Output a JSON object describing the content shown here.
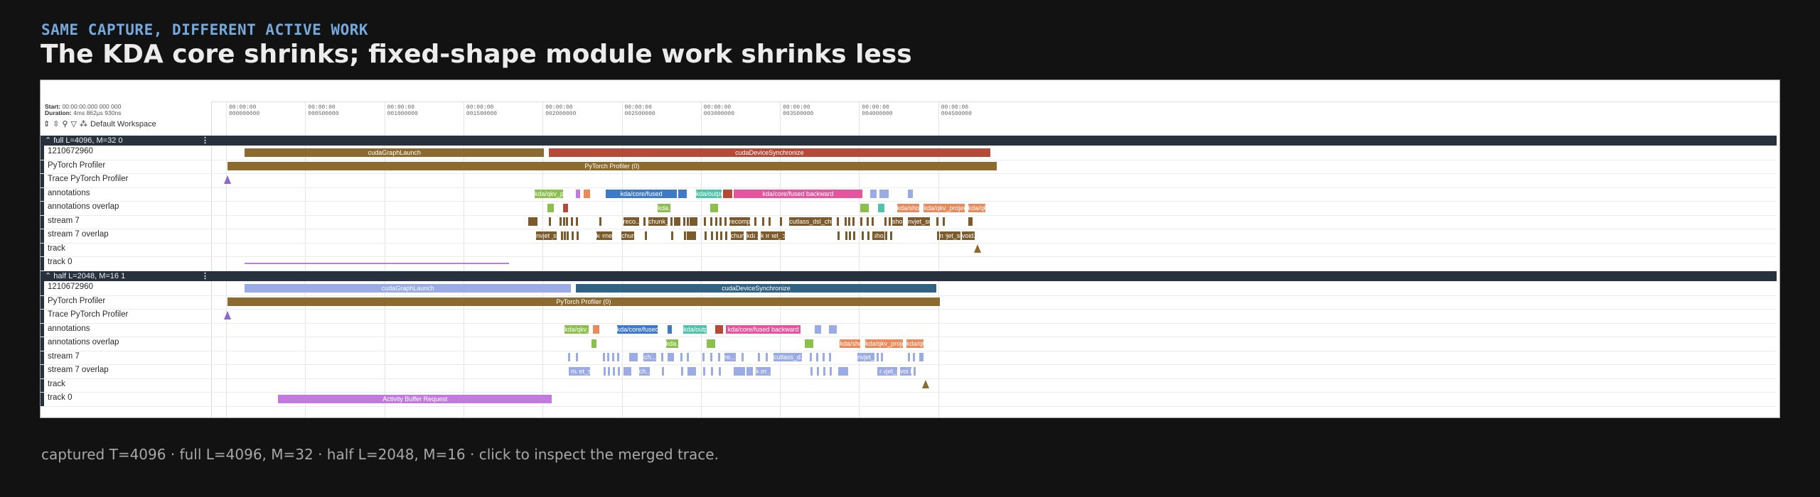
{
  "kicker": "SAME CAPTURE, DIFFERENT ACTIVE WORK",
  "title": "The KDA core shrinks; fixed-shape module work shrinks less",
  "caption": "captured T=4096 · full L=4096, M=32 · half L=2048, M=16 · click to inspect the merged trace.",
  "trace": {
    "start_label": "Start:",
    "start_value": "00:00:00.000 000 000",
    "duration_label": "Duration:",
    "duration_value": "4ms 862µs 930ns",
    "workspace": "Default Workspace",
    "ticks": [
      "00:00:00\n000000000",
      "00:00:00\n000500000",
      "00:00:00\n001000000",
      "00:00:00\n001500000",
      "00:00:00\n002000000",
      "00:00:00\n002500000",
      "00:00:00\n003000000",
      "00:00:00\n003500000",
      "00:00:00\n004000000",
      "00:00:00\n004500000"
    ],
    "groups": [
      {
        "label": "full L=4096, M=32 0",
        "rows": [
          "1210672960",
          "PyTorch Profiler",
          "Trace PyTorch Profiler",
          "annotations",
          "annotations overlap",
          "stream 7",
          "stream 7 overlap",
          "track",
          "track 0"
        ]
      },
      {
        "label": "half L=2048, M=16 1",
        "rows": [
          "1210672960",
          "PyTorch Profiler",
          "Trace PyTorch Profiler",
          "annotations",
          "annotations overlap",
          "stream 7",
          "stream 7 overlap",
          "track",
          "track 0"
        ]
      }
    ]
  },
  "colors": {
    "launch": "#8d6b2f",
    "sync_full": "#b64a36",
    "sync_half": "#2f6283",
    "launch_half": "#9aabe6",
    "profiler": "#8d6b2f",
    "kda_fused": "#3f79c9",
    "core_backward": "#e6549f",
    "qkv": "#8cc04e",
    "output": "#4fc4a8",
    "stream": "#7b5a2b",
    "stream_half": "#9aabe6",
    "activity": "#c07ae0",
    "short": "#e88a5a"
  },
  "group1": {
    "launch": {
      "label": "cudaGraphLaunch",
      "t0": 0.11,
      "t1": 2.0
    },
    "sync": {
      "label": "cudaDeviceSynchronize",
      "t0": 2.03,
      "t1": 4.82
    },
    "profiler": {
      "label": "PyTorch Profiler (0)",
      "t0": 0.0,
      "t1": 4.86
    },
    "annotations": [
      {
        "label": "kda/qkv_pro...",
        "t0": 1.94,
        "t1": 2.12,
        "c": "qkv"
      },
      {
        "label": "k",
        "t0": 2.2,
        "t1": 2.23,
        "c": "activity"
      },
      {
        "label": "k...",
        "t0": 2.25,
        "t1": 2.29,
        "c": "short"
      },
      {
        "label": "kda/core/fused",
        "t0": 2.39,
        "t1": 2.84,
        "c": "kda_fused"
      },
      {
        "label": "kd...",
        "t0": 2.85,
        "t1": 2.9,
        "c": "kda_fused"
      },
      {
        "label": "kda/output...",
        "t0": 2.96,
        "t1": 3.12,
        "c": "output"
      },
      {
        "label": "kd...",
        "t0": 3.13,
        "t1": 3.19,
        "c": "sync_full"
      },
      {
        "label": "kda/core/fused backward",
        "t0": 3.2,
        "t1": 4.01,
        "c": "core_backward"
      },
      {
        "label": "k...",
        "t0": 4.06,
        "t1": 4.1,
        "c": "launch_half"
      },
      {
        "label": "kd...",
        "t0": 4.12,
        "t1": 4.18,
        "c": "launch_half"
      },
      {
        "label": "k",
        "t0": 4.3,
        "t1": 4.33,
        "c": "launch_half"
      }
    ],
    "overlap": [
      {
        "label": "k...",
        "t0": 2.02,
        "t1": 2.06,
        "c": "qkv"
      },
      {
        "label": "k",
        "t0": 2.12,
        "t1": 2.15,
        "c": "sync_full"
      },
      {
        "label": "kda...",
        "t0": 2.72,
        "t1": 2.8,
        "c": "qkv"
      },
      {
        "label": "kd...",
        "t0": 3.05,
        "t1": 3.1,
        "c": "qkv"
      },
      {
        "label": "kd...",
        "t0": 4.0,
        "t1": 4.05,
        "c": "qkv"
      },
      {
        "label": "k...",
        "t0": 4.11,
        "t1": 4.15,
        "c": "output"
      },
      {
        "label": "kda/short...",
        "t0": 4.23,
        "t1": 4.37,
        "c": "short"
      },
      {
        "label": "kda/qkv_projection...",
        "t0": 4.4,
        "t1": 4.66,
        "c": "short"
      },
      {
        "label": "kda/qk...",
        "t0": 4.68,
        "t1": 4.79,
        "c": "short"
      }
    ],
    "stream": [
      {
        "label": "v",
        "t0": 1.9,
        "t1": 1.96
      },
      {
        "label": "reco...",
        "t0": 2.5,
        "t1": 2.6
      },
      {
        "label": "chunk_...",
        "t0": 2.66,
        "t1": 2.78
      },
      {
        "label": "n...",
        "t0": 2.82,
        "t1": 2.86
      },
      {
        "label": "n...",
        "t0": 2.92,
        "t1": 2.97
      },
      {
        "label": "recomp...",
        "t0": 3.17,
        "t1": 3.3
      },
      {
        "label": "cutlass_dsl_chunk_k...",
        "t0": 3.55,
        "t1": 3.82
      },
      {
        "label": "sho...",
        "t0": 4.2,
        "t1": 4.27
      },
      {
        "label": "nvjet_sm...",
        "t0": 4.3,
        "t1": 4.44
      },
      {
        "label": "v",
        "t0": 4.68,
        "t1": 4.71
      }
    ],
    "stream_overlap": [
      {
        "label": "nvjet_sm...",
        "t0": 1.95,
        "t1": 2.08
      },
      {
        "label": "kerne...",
        "t0": 2.33,
        "t1": 2.43
      },
      {
        "label": "chun...",
        "t0": 2.49,
        "t1": 2.57
      },
      {
        "label": "nv...",
        "t0": 2.9,
        "t1": 2.96
      },
      {
        "label": "chun...",
        "t0": 3.18,
        "t1": 3.26
      },
      {
        "label": "kda...",
        "t0": 3.28,
        "t1": 3.35
      },
      {
        "label": "kernel_cut...",
        "t0": 3.37,
        "t1": 3.52
      },
      {
        "label": "sho...",
        "t0": 4.08,
        "t1": 4.15
      },
      {
        "label": "nvjet_sm...",
        "t0": 4.5,
        "t1": 4.63
      },
      {
        "label": "void...",
        "t0": 4.64,
        "t1": 4.72
      }
    ],
    "track0_line": {
      "t0": 0.11,
      "t1": 1.78
    }
  },
  "group2": {
    "launch": {
      "label": "cudaGraphLaunch",
      "t0": 0.11,
      "t1": 2.17
    },
    "sync": {
      "label": "cudaDeviceSynchronize",
      "t0": 2.2,
      "t1": 4.48
    },
    "profiler": {
      "label": "PyTorch Profiler (0)",
      "t0": 0.0,
      "t1": 4.5
    },
    "annotations": [
      {
        "label": "kda/qkv_pr...",
        "t0": 2.13,
        "t1": 2.28,
        "c": "qkv"
      },
      {
        "label": "k...",
        "t0": 2.31,
        "t1": 2.35,
        "c": "short"
      },
      {
        "label": "kda/core/fused",
        "t0": 2.46,
        "t1": 2.72,
        "c": "kda_fused"
      },
      {
        "label": "k",
        "t0": 2.78,
        "t1": 2.81,
        "c": "kda_fused"
      },
      {
        "label": "kda/output...",
        "t0": 2.88,
        "t1": 3.03,
        "c": "output"
      },
      {
        "label": "k...",
        "t0": 3.08,
        "t1": 3.13,
        "c": "sync_full"
      },
      {
        "label": "kda/core/fused backward",
        "t0": 3.15,
        "t1": 3.62,
        "c": "core_backward"
      },
      {
        "label": "k...",
        "t0": 3.71,
        "t1": 3.75,
        "c": "launch_half"
      },
      {
        "label": "kd...",
        "t0": 3.8,
        "t1": 3.85,
        "c": "launch_half"
      }
    ],
    "overlap": [
      {
        "label": "k",
        "t0": 2.3,
        "t1": 2.33,
        "c": "qkv"
      },
      {
        "label": "kda...",
        "t0": 2.77,
        "t1": 2.85,
        "c": "qkv"
      },
      {
        "label": "kd...",
        "t0": 3.03,
        "t1": 3.08,
        "c": "qkv"
      },
      {
        "label": "k...",
        "t0": 3.65,
        "t1": 3.7,
        "c": "qkv"
      },
      {
        "label": "kda/shor...",
        "t0": 3.87,
        "t1": 4.0,
        "c": "short"
      },
      {
        "label": "kda/qkv_projectio...",
        "t0": 4.03,
        "t1": 4.27,
        "c": "short"
      },
      {
        "label": "kda/qk...",
        "t0": 4.29,
        "t1": 4.4,
        "c": "short"
      }
    ],
    "stream": [
      {
        "label": "r...",
        "t0": 2.54,
        "t1": 2.59
      },
      {
        "label": "ch...",
        "t0": 2.63,
        "t1": 2.71
      },
      {
        "label": "n...",
        "t0": 2.78,
        "t1": 2.82
      },
      {
        "label": "re...",
        "t0": 3.14,
        "t1": 3.21
      },
      {
        "label": "cutlass_d...",
        "t0": 3.45,
        "t1": 3.63
      },
      {
        "label": "nvjet_s...",
        "t0": 3.98,
        "t1": 4.09
      },
      {
        "label": "v",
        "t0": 4.37,
        "t1": 4.4
      }
    ],
    "stream_overlap": [
      {
        "label": "nvjet_sm...",
        "t0": 2.17,
        "t1": 2.29
      },
      {
        "label": "ke...",
        "t0": 2.5,
        "t1": 2.55
      },
      {
        "label": "ch...",
        "t0": 2.6,
        "t1": 2.67
      },
      {
        "label": "nv...",
        "t0": 2.91,
        "t1": 2.96
      },
      {
        "label": "ch...",
        "t0": 3.2,
        "t1": 3.26
      },
      {
        "label": "k...",
        "t0": 3.28,
        "t1": 3.32
      },
      {
        "label": "kern...",
        "t0": 3.34,
        "t1": 3.43
      },
      {
        "label": "cho...",
        "t0": 3.86,
        "t1": 3.92
      },
      {
        "label": "nvjet_s...",
        "t0": 4.12,
        "t1": 4.23
      },
      {
        "label": "void...",
        "t0": 4.25,
        "t1": 4.32
      }
    ],
    "activity": {
      "label": "Activity Buffer Request",
      "t0": 0.32,
      "t1": 2.05
    }
  }
}
